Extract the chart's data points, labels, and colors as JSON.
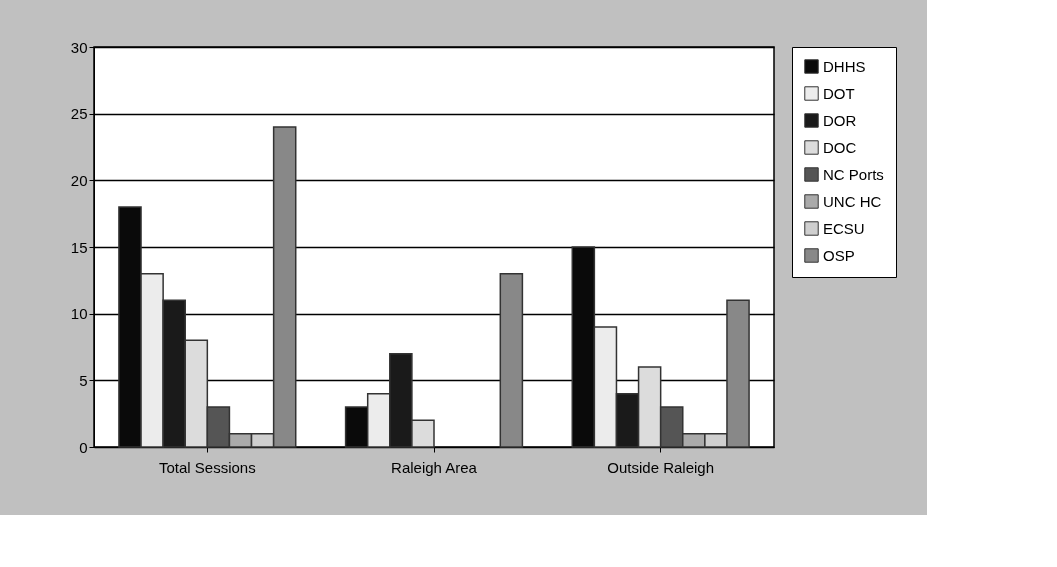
{
  "chart_data": {
    "type": "bar",
    "categories": [
      "Total Sessions",
      "Raleigh Area",
      "Outside Raleigh"
    ],
    "series": [
      {
        "name": "DHHS",
        "color": "#0a0a0a",
        "values": [
          18,
          3,
          15
        ]
      },
      {
        "name": "DOT",
        "color": "#ececec",
        "values": [
          13,
          4,
          9
        ]
      },
      {
        "name": "DOR",
        "color": "#1a1a1a",
        "values": [
          11,
          7,
          4
        ]
      },
      {
        "name": "DOC",
        "color": "#dcdcdc",
        "values": [
          8,
          2,
          6
        ]
      },
      {
        "name": "NC Ports",
        "color": "#555555",
        "values": [
          3,
          null,
          3
        ]
      },
      {
        "name": "UNC HC",
        "color": "#aaaaaa",
        "values": [
          1,
          null,
          1
        ]
      },
      {
        "name": "ECSU",
        "color": "#cfcfcf",
        "values": [
          1,
          null,
          1
        ]
      },
      {
        "name": "OSP",
        "color": "#888888",
        "values": [
          24,
          13,
          11
        ]
      }
    ],
    "ylim": [
      0,
      30
    ],
    "yticks": [
      0,
      5,
      10,
      15,
      20,
      25,
      30
    ],
    "grid": "y",
    "legend": "right"
  }
}
